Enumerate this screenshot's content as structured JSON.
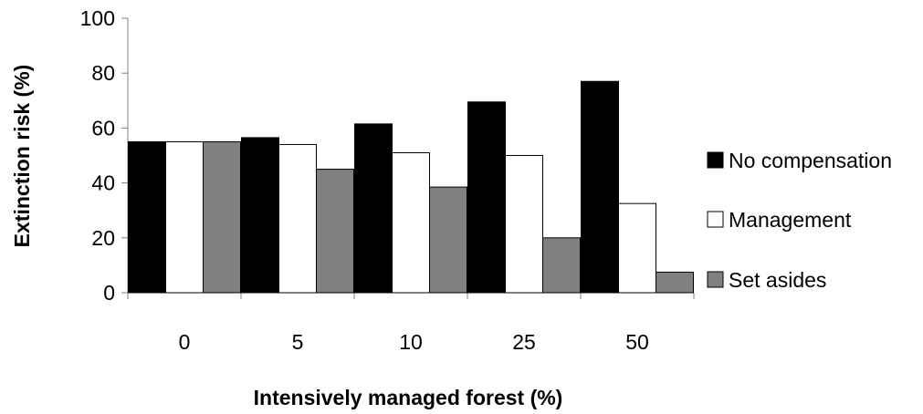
{
  "chart_data": {
    "type": "bar",
    "categories": [
      "0",
      "5",
      "10",
      "25",
      "50"
    ],
    "series": [
      {
        "name": "No compensation",
        "values": [
          55,
          56.5,
          61.5,
          69.5,
          77
        ],
        "color": "#000000"
      },
      {
        "name": "Management",
        "values": [
          55,
          54,
          51,
          50,
          32.5
        ],
        "color": "#ffffff"
      },
      {
        "name": "Set asides",
        "values": [
          55,
          45,
          38.5,
          20,
          7.5
        ],
        "color": "#808080"
      }
    ],
    "xlabel": "Intensively managed forest (%)",
    "ylabel": "Extinction risk (%)",
    "ylim": [
      0,
      100
    ],
    "yticks": [
      "0",
      "20",
      "40",
      "60",
      "80",
      "100"
    ],
    "grid": false,
    "legend_position": "right"
  }
}
